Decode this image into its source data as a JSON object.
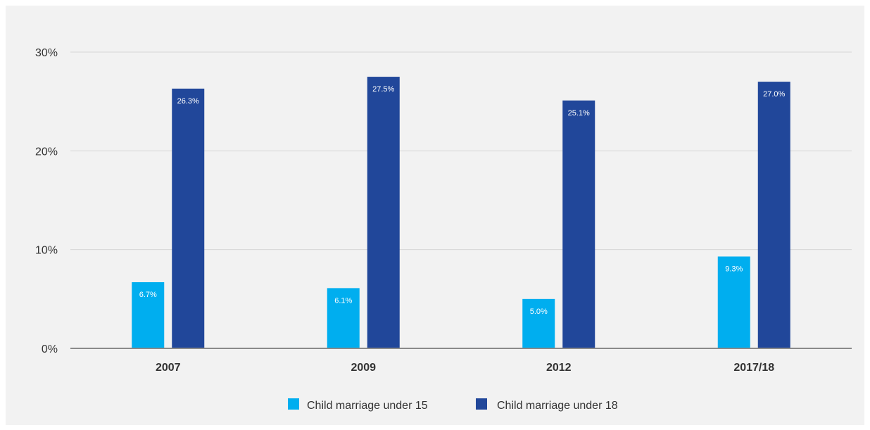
{
  "colors": {
    "under15": "#00aeef",
    "under18": "#21479a",
    "grid": "#d6d6d6",
    "axis": "#8a8a8a",
    "background": "#f2f2f2"
  },
  "chart_data": {
    "type": "bar",
    "title": "",
    "xlabel": "",
    "ylabel": "",
    "ylim": [
      0,
      30
    ],
    "yticks": [
      0,
      10,
      20,
      30
    ],
    "ytick_labels": [
      "0%",
      "10%",
      "20%",
      "30%"
    ],
    "categories": [
      "2007",
      "2009",
      "2012",
      "2017/18"
    ],
    "series": [
      {
        "name": "Child marriage under 15",
        "values": [
          6.7,
          6.1,
          5.0,
          9.3
        ],
        "labels": [
          "6.7%",
          "6.1%",
          "5.0%",
          "9.3%"
        ]
      },
      {
        "name": "Child marriage under 18",
        "values": [
          26.3,
          27.5,
          25.1,
          27.0
        ],
        "labels": [
          "26.3%",
          "27.5%",
          "25.1%",
          "27.0%"
        ]
      }
    ],
    "grid": true,
    "legend": "bottom-center"
  }
}
